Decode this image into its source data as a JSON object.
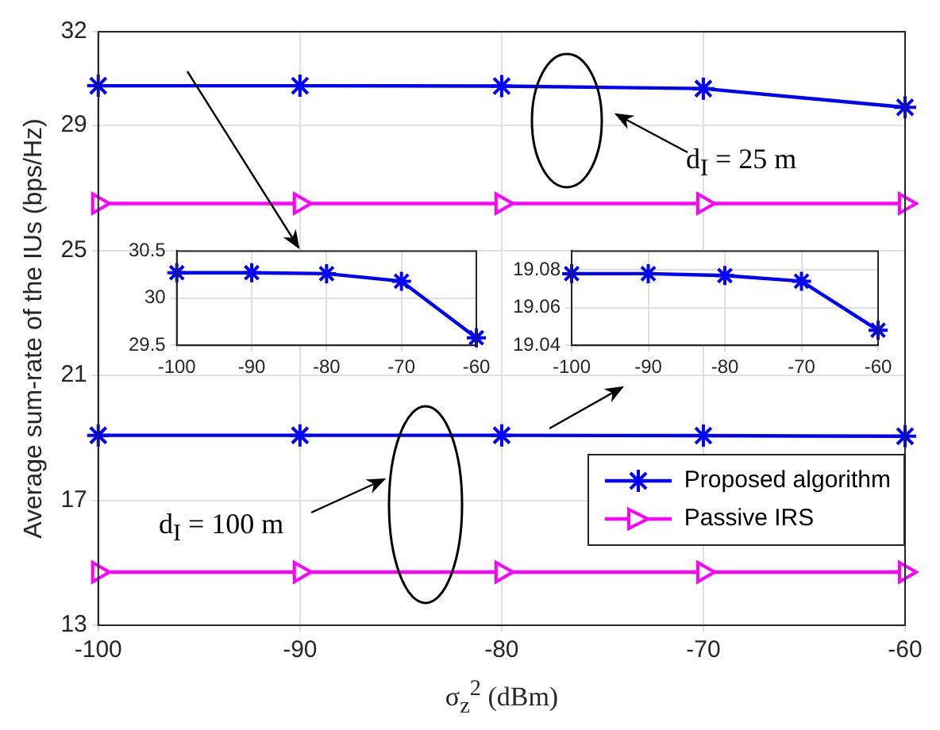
{
  "chart_data": [
    {
      "type": "line",
      "ylabel": "Average sum-rate of the IUs (bps/Hz)",
      "xlabel": "σ$_{z}$$^{2}$ (dBm)",
      "x": [
        -100,
        -90,
        -80,
        -70,
        -60
      ],
      "xlim": [
        -100,
        -60
      ],
      "xticks": [
        -100,
        -90,
        -80,
        -70,
        -60
      ],
      "ylim": [
        13,
        32
      ],
      "yticks": [
        13,
        17,
        21,
        25,
        29,
        32
      ],
      "grid": true,
      "legend": "bottom right",
      "annotations": [
        "d$_{I}$ = 25 m",
        "d$_{I}$ = 100 m"
      ],
      "series": [
        {
          "name": "Proposed algorithm",
          "color": "#0000ff",
          "marker": "cross",
          "values": [
            30.27,
            30.27,
            30.26,
            30.18,
            29.58
          ]
        },
        {
          "name": "Passive IRS",
          "color": "#ff00ff",
          "marker": "triangle",
          "values": [
            26.5,
            26.5,
            26.5,
            26.5,
            26.5
          ]
        },
        {
          "color": "#0000ff",
          "marker": "cross",
          "values": [
            19.08,
            19.08,
            19.08,
            19.07,
            19.05
          ]
        },
        {
          "color": "#ff00ff",
          "marker": "triangle",
          "values": [
            14.7,
            14.7,
            14.7,
            14.7,
            14.7
          ]
        }
      ]
    },
    {
      "type": "line",
      "x": [
        -100,
        -90,
        -80,
        -70,
        -60
      ],
      "xlim": [
        -100,
        -60
      ],
      "xticks": [
        -100,
        -90,
        -80,
        -70,
        -60
      ],
      "ylim": [
        29.5,
        30.5
      ],
      "yticks": [
        29.5,
        30,
        30.5
      ],
      "grid": true,
      "series": [
        {
          "color": "#0000ff",
          "marker": "cross",
          "values": [
            30.27,
            30.27,
            30.26,
            30.18,
            29.58
          ]
        }
      ]
    },
    {
      "type": "line",
      "x": [
        -100,
        -90,
        -80,
        -70,
        -60
      ],
      "xlim": [
        -100,
        -60
      ],
      "xticks": [
        -100,
        -90,
        -80,
        -70,
        -60
      ],
      "ylim": [
        19.04,
        19.09
      ],
      "yticks": [
        19.04,
        19.06,
        19.08
      ],
      "grid": true,
      "series": [
        {
          "color": "#0000ff",
          "marker": "cross",
          "values": [
            19.078,
            19.078,
            19.077,
            19.074,
            19.048
          ]
        }
      ]
    }
  ]
}
